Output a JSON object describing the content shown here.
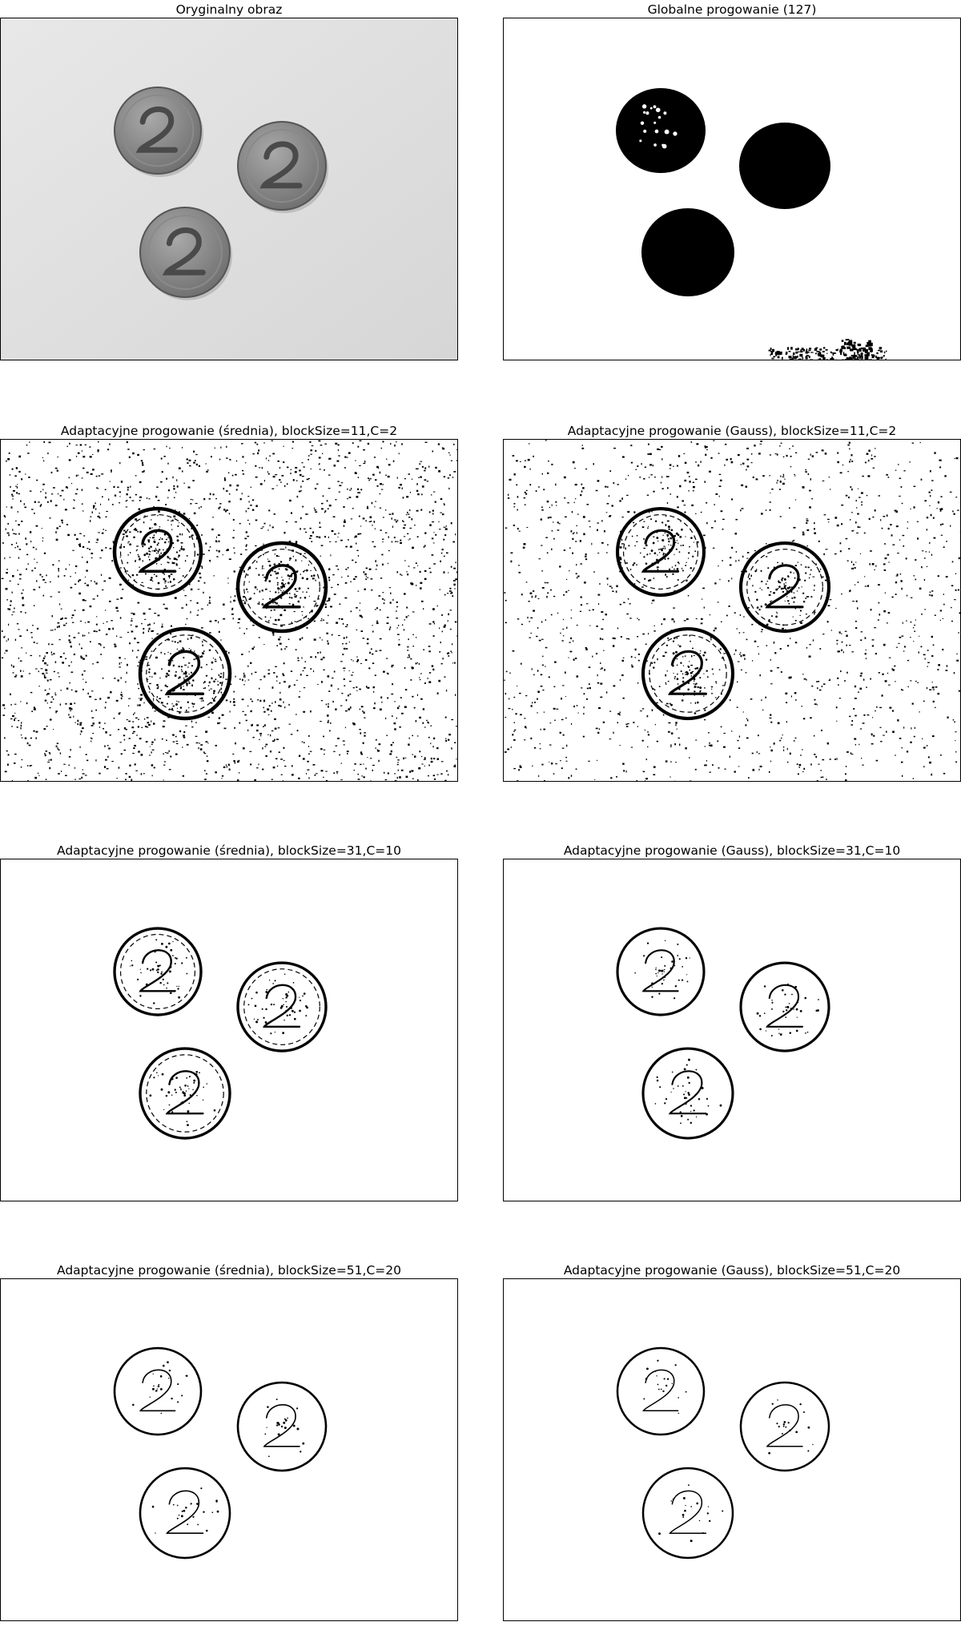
{
  "figure": {
    "panels": [
      {
        "id": "original",
        "title": "Oryginalny obraz",
        "mode": "original"
      },
      {
        "id": "global",
        "title": "Globalne progowanie (127)",
        "mode": "global"
      },
      {
        "id": "mean11",
        "title": "Adaptacyjne progowanie (średnia), blockSize=11,C=2",
        "mode": "adaptive",
        "noise": 0.9,
        "detail": 1.0
      },
      {
        "id": "gauss11",
        "title": "Adaptacyjne progowanie (Gauss), blockSize=11,C=2",
        "mode": "adaptive",
        "noise": 0.55,
        "detail": 0.85
      },
      {
        "id": "mean31",
        "title": "Adaptacyjne progowanie (średnia), blockSize=31,C=10",
        "mode": "adaptive",
        "noise": 0.0,
        "detail": 0.55
      },
      {
        "id": "gauss31",
        "title": "Adaptacyjne progowanie (Gauss), blockSize=31,C=10",
        "mode": "adaptive",
        "noise": 0.0,
        "detail": 0.45
      },
      {
        "id": "mean51",
        "title": "Adaptacyjne progowanie (średnia), blockSize=51,C=20",
        "mode": "adaptive",
        "noise": 0.0,
        "detail": 0.25
      },
      {
        "id": "gauss51",
        "title": "Adaptacyjne progowanie (Gauss), blockSize=51,C=20",
        "mode": "adaptive",
        "noise": 0.0,
        "detail": 0.2
      }
    ]
  }
}
